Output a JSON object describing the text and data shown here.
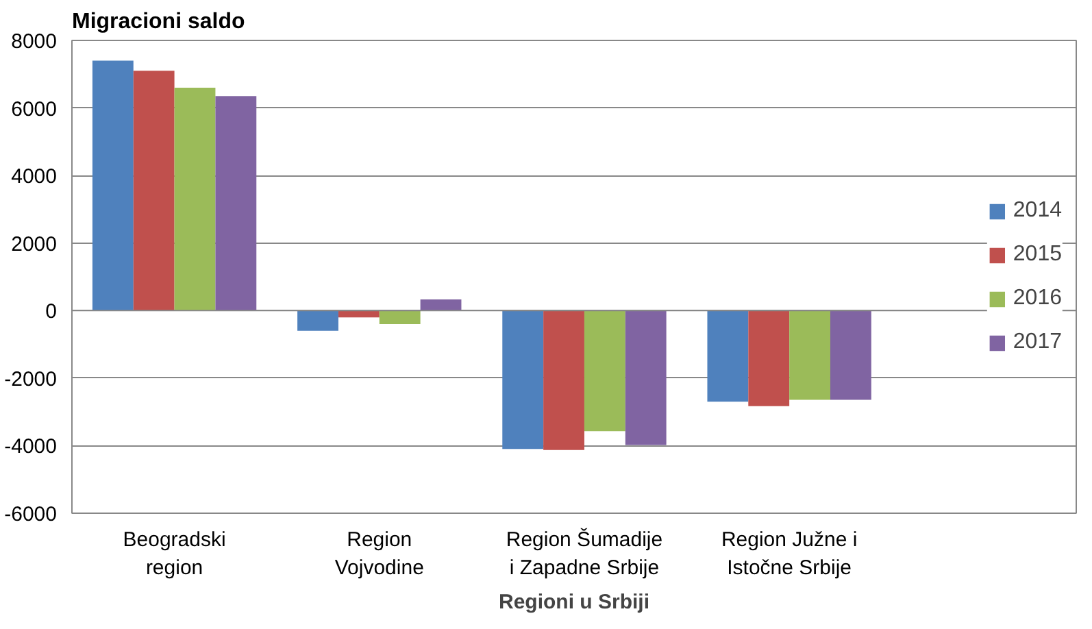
{
  "chart_data": {
    "type": "bar",
    "ylabel": "Migracioni saldo",
    "xlabel": "Regioni u Srbiji",
    "categories": [
      "Beogradski region",
      "Region Vojvodine",
      "Region Šumadije i Zapadne Srbije",
      "Region Južne i Istočne Srbije"
    ],
    "series": [
      {
        "name": "2014",
        "color": "#4f81bd",
        "values": [
          7400,
          -600,
          -4100,
          -2700
        ]
      },
      {
        "name": "2015",
        "color": "#c0504d",
        "values": [
          7100,
          -200,
          -4130,
          -2830
        ]
      },
      {
        "name": "2016",
        "color": "#9bbb59",
        "values": [
          6600,
          -400,
          -3570,
          -2640
        ]
      },
      {
        "name": "2017",
        "color": "#8064a2",
        "values": [
          6350,
          330,
          -3980,
          -2640
        ]
      }
    ],
    "ylim": [
      -6000,
      8000
    ],
    "yticks": [
      -6000,
      -4000,
      -2000,
      0,
      2000,
      4000,
      6000,
      8000
    ],
    "grid": "y",
    "legend": "right"
  }
}
